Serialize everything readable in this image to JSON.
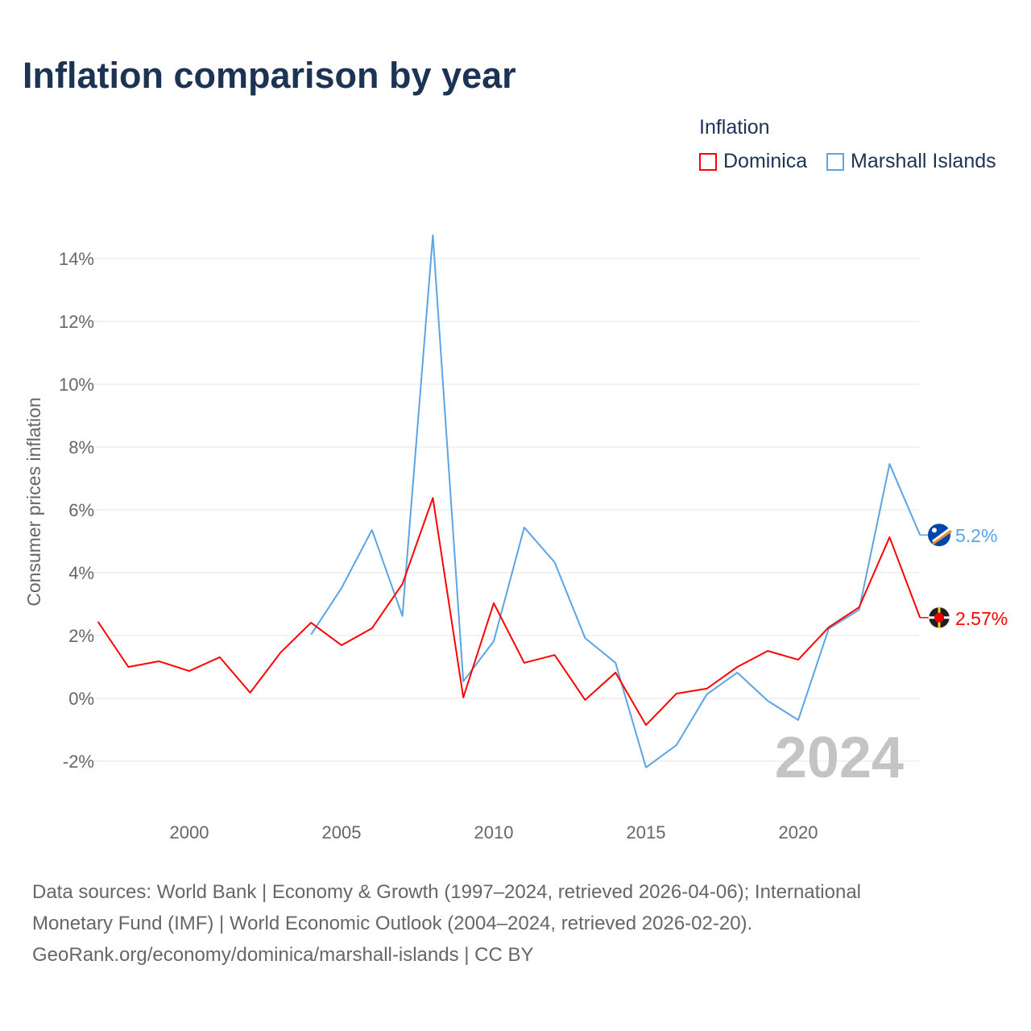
{
  "title": "Inflation comparison by year",
  "legend": {
    "title": "Inflation",
    "items": [
      "Dominica",
      "Marshall Islands"
    ]
  },
  "footer": {
    "line1": "Data sources: World Bank | Economy & Growth (1997–2024, retrieved 2026-04-06); International",
    "line2": "Monetary Fund (IMF) | World Economic Outlook (2004–2024, retrieved 2026-02-20).",
    "line3": "GeoRank.org/economy/dominica/marshall-islands | CC BY"
  },
  "chart_data": {
    "type": "line",
    "title": "Inflation comparison by year",
    "xlabel": "",
    "ylabel": "Consumer prices inflation",
    "xlim": [
      1997,
      2024
    ],
    "ylim": [
      -3,
      15
    ],
    "x_ticks": [
      2000,
      2005,
      2010,
      2015,
      2020
    ],
    "y_ticks": [
      -2,
      0,
      2,
      4,
      6,
      8,
      10,
      12,
      14
    ],
    "y_tick_labels": [
      "-2%",
      "0%",
      "2%",
      "4%",
      "6%",
      "8%",
      "10%",
      "12%",
      "14%"
    ],
    "watermark_year": "2024",
    "grid": true,
    "legend_position": "top-right",
    "series": [
      {
        "name": "Dominica",
        "color": "#ff0000",
        "end_label": "2.57%",
        "x": [
          1997,
          1998,
          1999,
          2000,
          2001,
          2002,
          2003,
          2004,
          2005,
          2006,
          2007,
          2008,
          2009,
          2010,
          2011,
          2012,
          2013,
          2014,
          2015,
          2016,
          2017,
          2018,
          2019,
          2020,
          2021,
          2022,
          2023,
          2024
        ],
        "values": [
          2.44,
          1.0,
          1.18,
          0.87,
          1.31,
          0.18,
          1.46,
          2.41,
          1.69,
          2.23,
          3.64,
          6.38,
          0.03,
          3.03,
          1.13,
          1.38,
          -0.05,
          0.82,
          -0.85,
          0.15,
          0.31,
          1.0,
          1.51,
          1.23,
          2.26,
          2.9,
          5.13,
          2.57
        ]
      },
      {
        "name": "Marshall Islands",
        "color": "#5ba4e5",
        "end_label": "5.2%",
        "x": [
          2004,
          2005,
          2006,
          2007,
          2008,
          2009,
          2010,
          2011,
          2012,
          2013,
          2014,
          2015,
          2016,
          2017,
          2018,
          2019,
          2020,
          2021,
          2022,
          2023,
          2024
        ],
        "values": [
          2.03,
          3.51,
          5.36,
          2.62,
          14.74,
          0.54,
          1.82,
          5.44,
          4.33,
          1.92,
          1.13,
          -2.2,
          -1.49,
          0.13,
          0.82,
          -0.08,
          -0.69,
          2.21,
          2.82,
          7.46,
          5.2
        ]
      }
    ]
  }
}
